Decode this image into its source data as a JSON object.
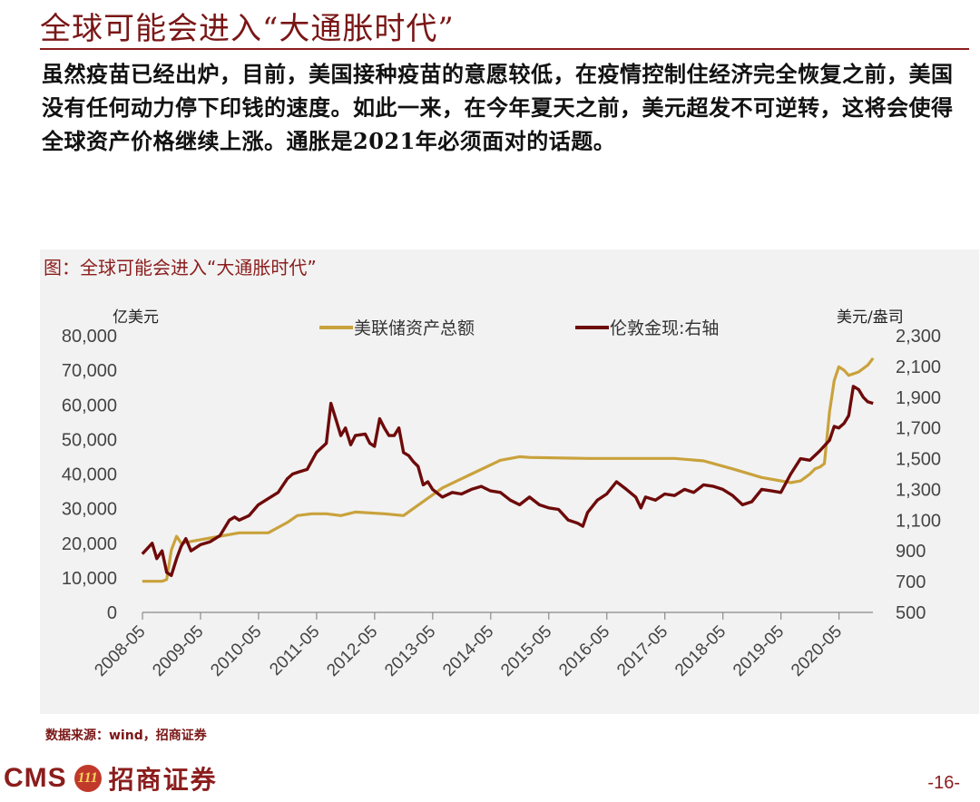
{
  "title": "全球可能会进入“大通胀时代”",
  "body_text": "虽然疫苗已经出炉，目前，美国接种疫苗的意愿较低，在疫情控制住经济完全恢复之前，美国没有任何动力停下印钱的速度。如此一来，在今年夏天之前，美元超发不可逆转，这将会使得全球资产价格继续上涨。通胀是2021年必须面对的话题。",
  "figure_caption": "图：全球可能会进入“大通胀时代”",
  "source": "数据来源：wind，招商证券",
  "logo": {
    "brand": "CMS",
    "badge": "111",
    "name": "招商证券"
  },
  "page_number": "-16-",
  "colors": {
    "fed_line": "#c9a23c",
    "gold_line": "#6e0a0a",
    "accent": "#8b1d1d"
  },
  "chart_data": {
    "type": "line",
    "left_unit": "亿美元",
    "right_unit": "美元/盎司",
    "left_ticks": [
      "80,000",
      "70,000",
      "60,000",
      "50,000",
      "40,000",
      "30,000",
      "20,000",
      "10,000",
      "0"
    ],
    "right_ticks": [
      "2,300",
      "2,100",
      "1,900",
      "1,700",
      "1,500",
      "1,300",
      "1,100",
      "900",
      "700",
      "500"
    ],
    "x_ticks": [
      "2008-05",
      "2009-05",
      "2010-05",
      "2011-05",
      "2012-05",
      "2013-05",
      "2014-05",
      "2015-05",
      "2016-05",
      "2017-05",
      "2018-05",
      "2019-05",
      "2020-05"
    ],
    "ylim_left": [
      0,
      80000
    ],
    "ylim_right": [
      500,
      2300
    ],
    "xlim": [
      2008.333,
      2020.917
    ],
    "series": [
      {
        "name": "美联储资产总额",
        "axis": "left",
        "x": [
          2008.33,
          2008.67,
          2008.75,
          2008.83,
          2008.92,
          2009.0,
          2009.17,
          2009.33,
          2009.5,
          2009.67,
          2010.0,
          2010.5,
          2010.83,
          2011.0,
          2011.25,
          2011.5,
          2011.75,
          2012.0,
          2012.5,
          2012.83,
          2013.0,
          2013.5,
          2014.0,
          2014.5,
          2014.83,
          2015.0,
          2016.0,
          2017.0,
          2017.5,
          2018.0,
          2018.5,
          2019.0,
          2019.5,
          2019.67,
          2019.83,
          2019.92,
          2020.0,
          2020.08,
          2020.17,
          2020.25,
          2020.33,
          2020.42,
          2020.5,
          2020.67,
          2020.83,
          2020.92
        ],
        "y": [
          9000,
          9000,
          9500,
          18000,
          22000,
          20000,
          20500,
          21000,
          21500,
          22000,
          23000,
          23000,
          26000,
          28000,
          28500,
          28500,
          28000,
          29000,
          28500,
          28000,
          30000,
          36000,
          40000,
          44000,
          45000,
          44800,
          44500,
          44500,
          44500,
          43800,
          41500,
          39000,
          37500,
          38000,
          40000,
          41500,
          42000,
          43000,
          58000,
          67000,
          71000,
          70000,
          68500,
          69500,
          71500,
          73500
        ]
      },
      {
        "name": "伦敦金现:右轴",
        "axis": "right",
        "x": [
          2008.33,
          2008.5,
          2008.58,
          2008.67,
          2008.75,
          2008.83,
          2008.92,
          2009.0,
          2009.08,
          2009.17,
          2009.33,
          2009.5,
          2009.67,
          2009.83,
          2009.92,
          2010.0,
          2010.17,
          2010.33,
          2010.5,
          2010.67,
          2010.83,
          2010.92,
          2011.0,
          2011.17,
          2011.33,
          2011.5,
          2011.58,
          2011.67,
          2011.75,
          2011.83,
          2011.92,
          2012.0,
          2012.17,
          2012.25,
          2012.33,
          2012.42,
          2012.5,
          2012.58,
          2012.67,
          2012.75,
          2012.83,
          2012.92,
          2013.0,
          2013.08,
          2013.17,
          2013.25,
          2013.33,
          2013.5,
          2013.67,
          2013.83,
          2014.0,
          2014.17,
          2014.33,
          2014.5,
          2014.67,
          2014.83,
          2015.0,
          2015.17,
          2015.33,
          2015.5,
          2015.67,
          2015.83,
          2015.92,
          2016.0,
          2016.17,
          2016.33,
          2016.5,
          2016.67,
          2016.83,
          2016.92,
          2017.0,
          2017.17,
          2017.33,
          2017.5,
          2017.67,
          2017.83,
          2018.0,
          2018.17,
          2018.33,
          2018.5,
          2018.67,
          2018.83,
          2019.0,
          2019.17,
          2019.33,
          2019.5,
          2019.67,
          2019.83,
          2020.0,
          2020.17,
          2020.25,
          2020.33,
          2020.42,
          2020.5,
          2020.58,
          2020.67,
          2020.75,
          2020.83,
          2020.92
        ],
        "y": [
          880,
          950,
          850,
          900,
          760,
          740,
          850,
          930,
          980,
          900,
          940,
          960,
          1000,
          1100,
          1120,
          1100,
          1130,
          1200,
          1240,
          1280,
          1370,
          1400,
          1410,
          1430,
          1540,
          1600,
          1860,
          1750,
          1650,
          1700,
          1590,
          1650,
          1660,
          1600,
          1580,
          1760,
          1700,
          1650,
          1650,
          1700,
          1540,
          1520,
          1480,
          1450,
          1330,
          1350,
          1300,
          1250,
          1280,
          1270,
          1300,
          1320,
          1290,
          1280,
          1230,
          1200,
          1250,
          1200,
          1180,
          1170,
          1100,
          1080,
          1060,
          1150,
          1230,
          1270,
          1350,
          1300,
          1250,
          1180,
          1250,
          1230,
          1270,
          1260,
          1300,
          1280,
          1330,
          1320,
          1300,
          1260,
          1200,
          1220,
          1300,
          1290,
          1280,
          1400,
          1500,
          1490,
          1550,
          1620,
          1710,
          1700,
          1730,
          1780,
          1970,
          1950,
          1900,
          1870,
          1860
        ]
      }
    ]
  }
}
